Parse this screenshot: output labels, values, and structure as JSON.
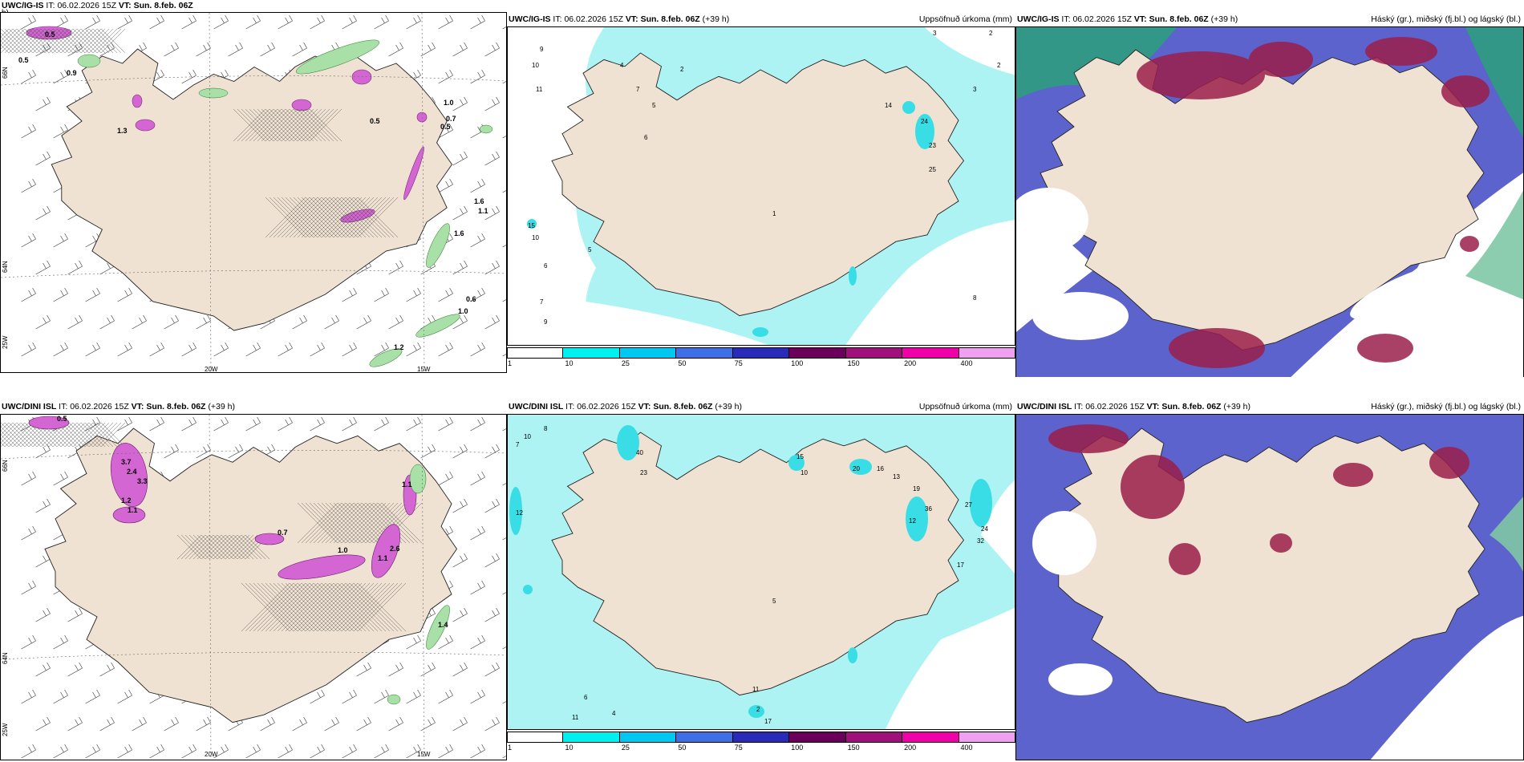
{
  "figure": {
    "rows": [
      {
        "model": "UWC/IG-IS",
        "it_label": "IT:",
        "it_value": "06.02.2026 15Z",
        "vt_label": "VT:",
        "vt_value": "Sun. 8.feb. 06Z",
        "lead": "(+39 h)",
        "panel1_title_tail": "h)"
      },
      {
        "model": "UWC/DINI ISL",
        "it_label": "IT:",
        "it_value": "06.02.2026 15Z",
        "vt_label": "VT:",
        "vt_value": "Sun. 8.feb. 06Z",
        "lead": "(+39 h)"
      }
    ],
    "precip_title": "Uppsöfnuð úrkoma (mm)",
    "cloud_title": "Háský (gr.), miðský (fj.bl.) og lágský (bl.)",
    "lon_labels": [
      "20W",
      "15W"
    ],
    "lat_labels_top": [
      "66N",
      "64N"
    ],
    "lat_labels_side": [
      "25W"
    ],
    "colorbar": {
      "ticks": [
        "1",
        "10",
        "25",
        "50",
        "75",
        "100",
        "150",
        "200",
        "400"
      ],
      "colors": [
        "#ffffff",
        "#00f0f0",
        "#00c8f0",
        "#3f6fe6",
        "#2a2ab8",
        "#6a005a",
        "#a0107a",
        "#f000a8",
        "#f0a0f0"
      ]
    },
    "colors": {
      "land": "#efe2d2",
      "sea_precip": "#aef3f3",
      "cyan": "#38dde6",
      "magenta": "#d466d4",
      "green": "#a8e0a8",
      "blue": "#4a52c8",
      "darkred": "#9a1e4a",
      "teal": "#2aa07a"
    },
    "precip_labels_top": [
      "3",
      "2",
      "9",
      "10",
      "11",
      "4",
      "7",
      "5",
      "6",
      "2",
      "15",
      "10",
      "6",
      "5",
      "9",
      "7",
      "8",
      "4",
      "14",
      "24",
      "23",
      "25",
      "1",
      "2",
      "3"
    ],
    "precip_labels_bottom": [
      "10",
      "8",
      "7",
      "12",
      "40",
      "23",
      "15",
      "10",
      "20",
      "16",
      "13",
      "19",
      "36",
      "27",
      "32",
      "24",
      "17",
      "12",
      "11",
      "2",
      "17",
      "5",
      "11",
      "4",
      "6"
    ],
    "wind_labels_top": [
      "0.5",
      "0.5",
      "0.9",
      "1.3",
      "0.5",
      "1.0",
      "0.7",
      "0.5",
      "1.6",
      "1.1",
      "1.6",
      "0.6",
      "1.0",
      "1.2"
    ],
    "wind_labels_bottom": [
      "0.5",
      "3.7",
      "2.4",
      "3.3",
      "1.2",
      "1.1",
      "0.7",
      "1.0",
      "1.1",
      "2.6",
      "1.1",
      "1.4"
    ]
  }
}
